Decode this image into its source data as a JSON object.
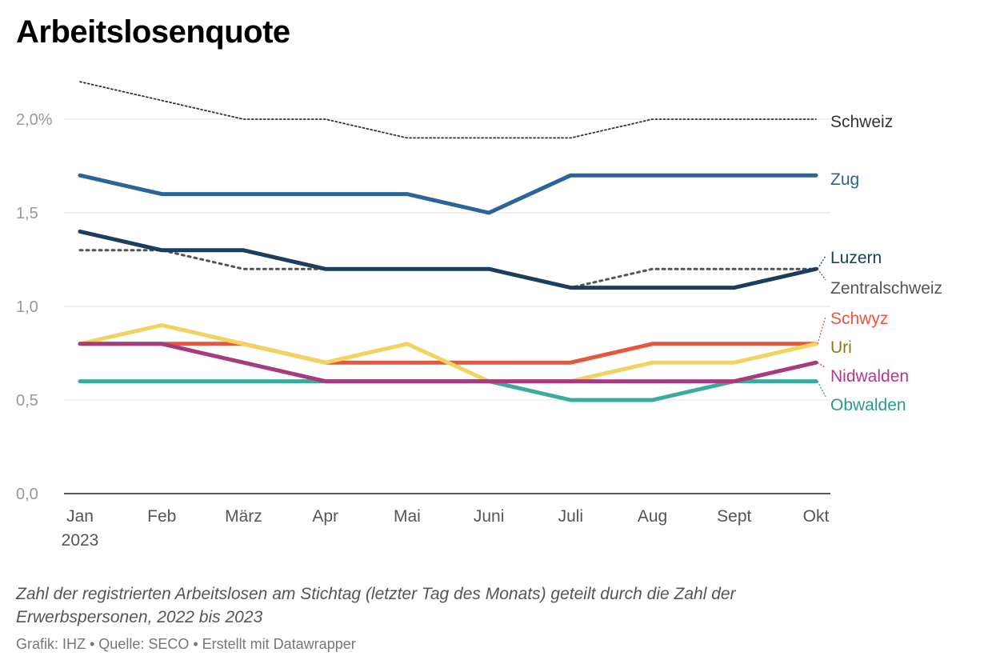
{
  "title": "Arbeitslosenquote",
  "notes": "Zahl der registrierten Arbeitslosen am Stichtag (letzter Tag des Monats) geteilt durch die Zahl der Erwerbspersonen, 2022 bis 2023",
  "credits": "Grafik: IHZ • Quelle: SECO • Erstellt mit Datawrapper",
  "chart_data": {
    "type": "line",
    "categories": [
      "Jan",
      "Feb",
      "März",
      "Apr",
      "Mai",
      "Juni",
      "Juli",
      "Aug",
      "Sept",
      "Okt"
    ],
    "year_label": "2023",
    "ylim": [
      0,
      2.2
    ],
    "yticks": [
      {
        "value": 0.0,
        "label": "0,0"
      },
      {
        "value": 0.5,
        "label": "0,5"
      },
      {
        "value": 1.0,
        "label": "1,0"
      },
      {
        "value": 1.5,
        "label": "1,5"
      },
      {
        "value": 2.0,
        "label": "2,0%"
      }
    ],
    "grid": true,
    "legend": "direct labels at right end of lines",
    "series": [
      {
        "name": "Schweiz",
        "color": "#333333",
        "style": "dotted",
        "values": [
          2.2,
          2.1,
          2.0,
          2.0,
          1.9,
          1.9,
          1.9,
          2.0,
          2.0,
          2.0
        ]
      },
      {
        "name": "Zentralschweiz",
        "color": "#555555",
        "style": "dotted",
        "values": [
          1.3,
          1.3,
          1.2,
          1.2,
          1.2,
          1.2,
          1.1,
          1.2,
          1.2,
          1.2
        ]
      },
      {
        "name": "Zug",
        "color": "#2a6499",
        "style": "solid",
        "values": [
          1.7,
          1.6,
          1.6,
          1.6,
          1.6,
          1.5,
          1.7,
          1.7,
          1.7,
          1.7
        ]
      },
      {
        "name": "Luzern",
        "color": "#1b3e5e",
        "style": "solid",
        "values": [
          1.4,
          1.3,
          1.3,
          1.2,
          1.2,
          1.2,
          1.1,
          1.1,
          1.1,
          1.2
        ]
      },
      {
        "name": "Schwyz",
        "color": "#e8563d",
        "style": "solid",
        "values": [
          0.8,
          0.8,
          0.8,
          0.7,
          0.7,
          0.7,
          0.7,
          0.8,
          0.8,
          0.8
        ]
      },
      {
        "name": "Uri",
        "color": "#f2d35f",
        "label_color": "#8a7a10",
        "style": "solid",
        "values": [
          0.8,
          0.9,
          0.8,
          0.7,
          0.8,
          0.6,
          0.6,
          0.7,
          0.7,
          0.8
        ]
      },
      {
        "name": "Obwalden",
        "color": "#3aab9d",
        "label_color": "#2a9a8a",
        "style": "solid",
        "values": [
          0.6,
          0.6,
          0.6,
          0.6,
          0.6,
          0.6,
          0.5,
          0.5,
          0.6,
          0.6
        ]
      },
      {
        "name": "Nidwalden",
        "color": "#a83a7e",
        "label_color": "#b03a84",
        "style": "solid",
        "values": [
          0.8,
          0.8,
          0.7,
          0.6,
          0.6,
          0.6,
          0.6,
          0.6,
          0.6,
          0.7
        ]
      }
    ]
  }
}
